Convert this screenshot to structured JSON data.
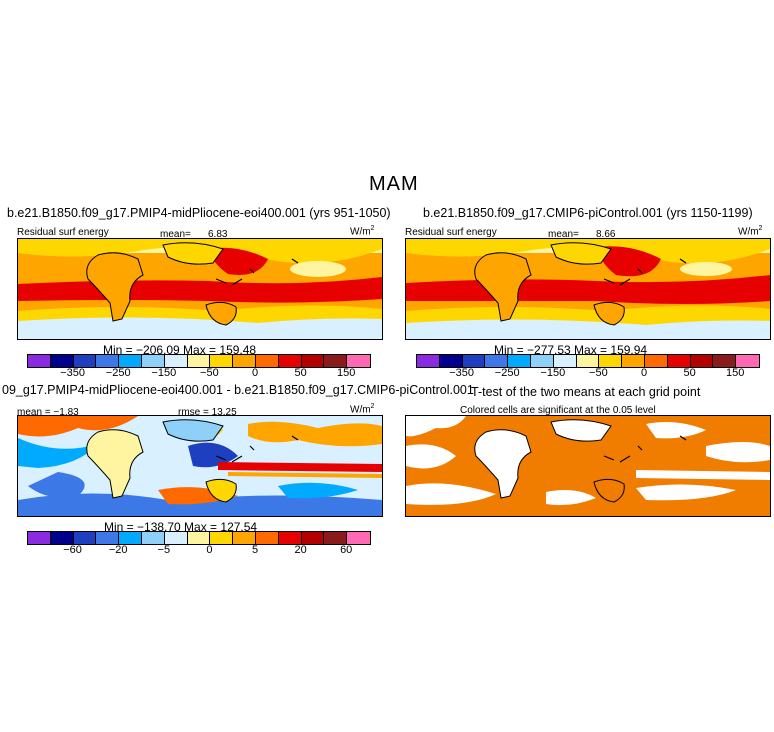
{
  "season": "MAM",
  "panels": {
    "a": {
      "title": "b.e21.B1850.f09_g17.PMIP4-midPliocene-eoi400.001 (yrs 951-1050)",
      "field": "Residual surf energy",
      "stat_label": "mean=",
      "stat_value": "6.83",
      "units": "W/m",
      "units_sup": "2",
      "minmax": "Min = −206.09  Max = 159.48"
    },
    "b": {
      "title": "b.e21.B1850.f09_g17.CMIP6-piControl.001 (yrs 1150-1199)",
      "field": "Residual surf energy",
      "stat_label": "mean=",
      "stat_value": "8.66",
      "units": "W/m",
      "units_sup": "2",
      "minmax": "Min = −277.53  Max = 159.94"
    },
    "c": {
      "title": "09_g17.PMIP4-midPliocene-eoi400.001 - b.e21.B1850.f09_g17.CMIP6-piControl.001",
      "mean": "mean =   −1.83",
      "rmse": "rmse =   13.25",
      "units": "W/m",
      "units_sup": "2",
      "minmax": "Min = −138.70  Max = 127.54"
    },
    "d": {
      "title": "T-test of the two means at each grid point",
      "subtitle": "Colored cells are significant at the 0.05 level"
    }
  },
  "colorbars": {
    "abs": {
      "colors": [
        "#8a2be2",
        "#00008b",
        "#1e40c0",
        "#3c78e6",
        "#00aaff",
        "#8fd0f8",
        "#d8f0ff",
        "#fff5a0",
        "#ffd700",
        "#ffa500",
        "#ff6a00",
        "#e60000",
        "#b30000",
        "#8b1a1a",
        "#ff69b4"
      ],
      "labels": [
        "−350",
        "−250",
        "−150",
        "−50",
        "0",
        "50",
        "150"
      ]
    },
    "diff": {
      "colors": [
        "#8a2be2",
        "#00008b",
        "#1e40c0",
        "#3c78e6",
        "#00aaff",
        "#8fd0f8",
        "#d8f0ff",
        "#fff5a0",
        "#ffd700",
        "#ffa500",
        "#ff6a00",
        "#e60000",
        "#b30000",
        "#8b1a1a",
        "#ff69b4"
      ],
      "labels": [
        "−60",
        "−20",
        "−5",
        "0",
        "5",
        "20",
        "60"
      ]
    }
  },
  "colors": {
    "signif": "#f07c00",
    "ocean_warm": "#ffa500",
    "ocean_hot": "#e60000",
    "land_pale": "#fff5a0",
    "south_cold": "#d8f0ff"
  }
}
